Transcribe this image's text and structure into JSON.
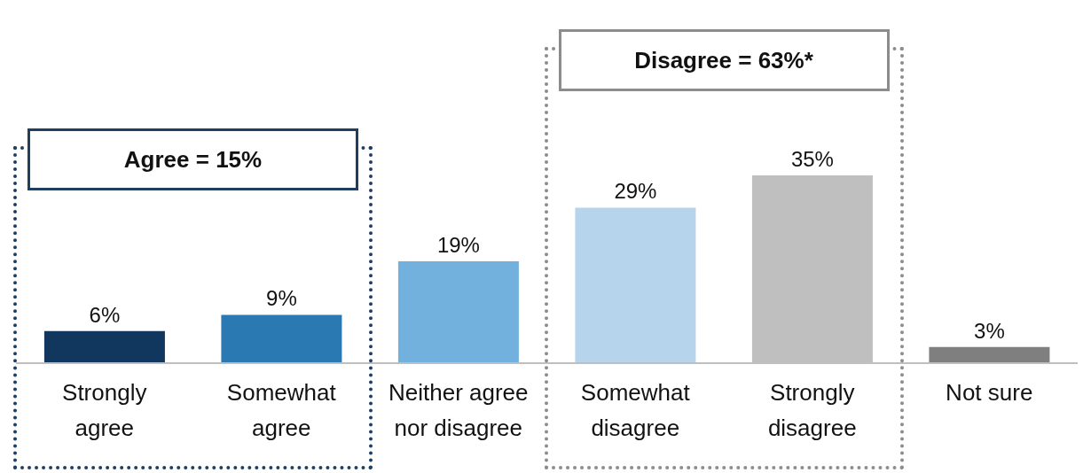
{
  "chart_data": {
    "type": "bar",
    "categories": [
      "Strongly agree",
      "Somewhat agree",
      "Neither agree nor disagree",
      "Somewhat disagree",
      "Strongly disagree",
      "Not sure"
    ],
    "values": [
      6,
      9,
      19,
      29,
      35,
      3
    ],
    "colors": [
      "#12375f",
      "#2a79b2",
      "#72b0dd",
      "#b6d5ec",
      "#bfbfbf",
      "#7f7f7f"
    ],
    "value_labels": [
      "6%",
      "9%",
      "19%",
      "29%",
      "35%",
      "3%"
    ],
    "annotations": [
      "Agree = 15%",
      "Disagree = 63%*"
    ]
  }
}
